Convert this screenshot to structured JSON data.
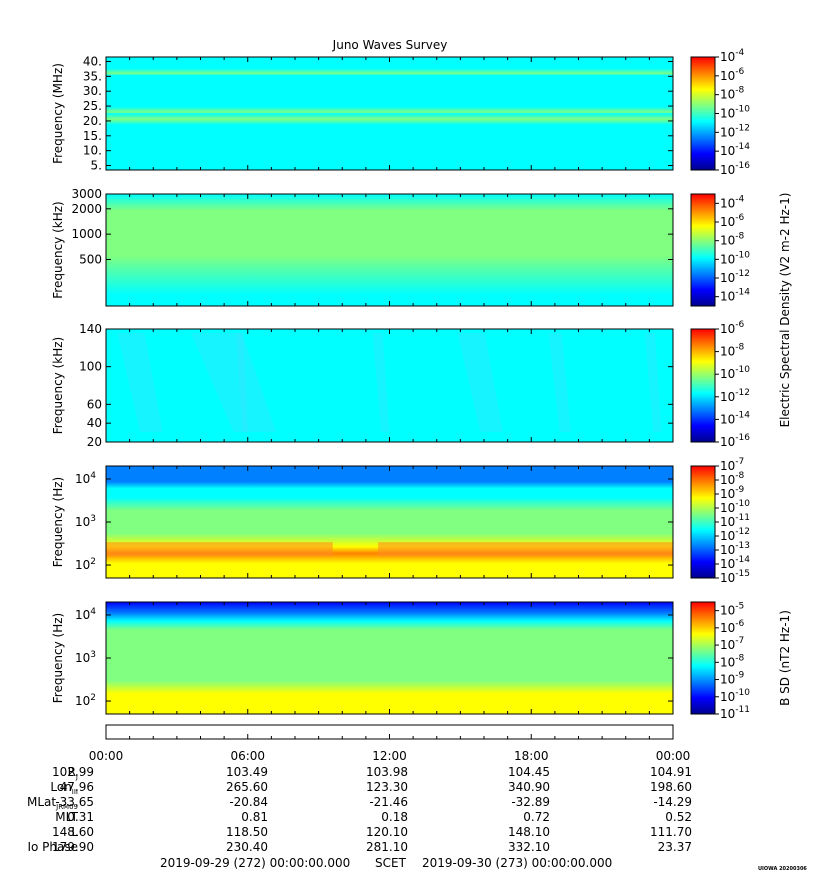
{
  "title": "Juno Waves Survey",
  "stamp": "UIOWA 20200306",
  "colors": {
    "jet": [
      "#00008f",
      "#0000ff",
      "#0080ff",
      "#00ffff",
      "#80ff80",
      "#ffff00",
      "#ff8000",
      "#ff0000",
      "#800000"
    ]
  },
  "chart_data": [
    {
      "type": "heatmap",
      "name": "hf-high",
      "ylabel": "Frequency (MHz)",
      "yscale": "linear",
      "ylim": [
        3.5,
        41.5
      ],
      "yticks": [
        {
          "v": 5,
          "label": "5."
        },
        {
          "v": 10,
          "label": "10."
        },
        {
          "v": 15,
          "label": "15."
        },
        {
          "v": 20,
          "label": "20."
        },
        {
          "v": 25,
          "label": "25."
        },
        {
          "v": 30,
          "label": "30."
        },
        {
          "v": 35,
          "label": "35."
        },
        {
          "v": 40,
          "label": "40."
        }
      ],
      "colorbar": {
        "min_exp": -16,
        "max_exp": -4,
        "ticks": [
          -4,
          -6,
          -8,
          -10,
          -12,
          -14,
          -16
        ]
      },
      "texture": "hfhigh"
    },
    {
      "type": "heatmap",
      "name": "hf-low",
      "ylabel": "Frequency (kHz)",
      "yscale": "log",
      "ylim": [
        140,
        3000
      ],
      "yticks": [
        {
          "v": 3000,
          "label": "3000"
        },
        {
          "v": 2000,
          "label": "2000"
        },
        {
          "v": 1000,
          "label": "1000"
        },
        {
          "v": 500,
          "label": "500"
        }
      ],
      "colorbar": {
        "min_exp": -15,
        "max_exp": -3,
        "ticks": [
          -4,
          -6,
          -8,
          -10,
          -12,
          -14
        ]
      },
      "colorbar_label": "Electric Spectral Density (V^2 m^-2 Hz^-1)",
      "texture": "hflow"
    },
    {
      "type": "heatmap",
      "name": "lfr-high",
      "ylabel": "Frequency (kHz)",
      "yscale": "linear",
      "ylim": [
        20,
        140
      ],
      "yticks": [
        {
          "v": 20,
          "label": "20"
        },
        {
          "v": 40,
          "label": "40"
        },
        {
          "v": 60,
          "label": "60"
        },
        {
          "v": 100,
          "label": "100"
        },
        {
          "v": 140,
          "label": "140"
        }
      ],
      "colorbar": {
        "min_exp": -16,
        "max_exp": -6,
        "ticks": [
          -6,
          -8,
          -10,
          -12,
          -14,
          -16
        ]
      },
      "texture": "lfr"
    },
    {
      "type": "heatmap",
      "name": "lfr-low",
      "ylabel": "Frequency (Hz)",
      "yscale": "log",
      "ylim": [
        50,
        20000
      ],
      "yticks": [
        {
          "v": 100,
          "label": "10",
          "sup": "2"
        },
        {
          "v": 1000,
          "label": "10",
          "sup": "3"
        },
        {
          "v": 10000,
          "label": "10",
          "sup": "4"
        }
      ],
      "colorbar": {
        "min_exp": -15,
        "max_exp": -7,
        "ticks": [
          -7,
          -8,
          -9,
          -10,
          -11,
          -12,
          -13,
          -14,
          -15
        ]
      },
      "texture": "elf"
    },
    {
      "type": "heatmap",
      "name": "magnetic",
      "ylabel": "Frequency (Hz)",
      "yscale": "log",
      "ylim": [
        50,
        20000
      ],
      "yticks": [
        {
          "v": 100,
          "label": "10",
          "sup": "2"
        },
        {
          "v": 1000,
          "label": "10",
          "sup": "3"
        },
        {
          "v": 10000,
          "label": "10",
          "sup": "4"
        }
      ],
      "colorbar": {
        "min_exp": -11,
        "max_exp": -4.5,
        "ticks": [
          -5,
          -6,
          -7,
          -8,
          -9,
          -10,
          -11
        ]
      },
      "colorbar_label": "B SD (nT^2 Hz^-1)",
      "texture": "mag"
    }
  ],
  "time_axis": {
    "labels": [
      "00:00",
      "06:00",
      "12:00",
      "18:00",
      "00:00"
    ]
  },
  "ephemeris": [
    {
      "label": "R",
      "sub": "J",
      "values": [
        "102.99",
        "103.49",
        "103.98",
        "104.45",
        "104.91"
      ]
    },
    {
      "label": "Lon",
      "sub": "III",
      "values": [
        "47.96",
        "265.60",
        "123.30",
        "340.90",
        "198.60"
      ]
    },
    {
      "label": "MLat",
      "sub": "JRM09",
      "values": [
        "-33.65",
        "-20.84",
        "-21.46",
        "-32.89",
        "-14.29"
      ]
    },
    {
      "label": "MLT",
      "sub": "",
      "values": [
        "0.31",
        "0.81",
        "0.18",
        "0.72",
        "0.52"
      ]
    },
    {
      "label": "L",
      "sub": "",
      "values": [
        "148.60",
        "118.50",
        "120.10",
        "148.10",
        "111.70"
      ]
    },
    {
      "label": "Io Phase",
      "sub": "",
      "values": [
        "179.90",
        "230.40",
        "281.10",
        "332.10",
        "23.37"
      ]
    }
  ],
  "footer": {
    "start": "2019-09-29 (272) 00:00:00.000",
    "scet": "SCET",
    "end": "2019-09-30 (273) 00:00:00.000"
  }
}
